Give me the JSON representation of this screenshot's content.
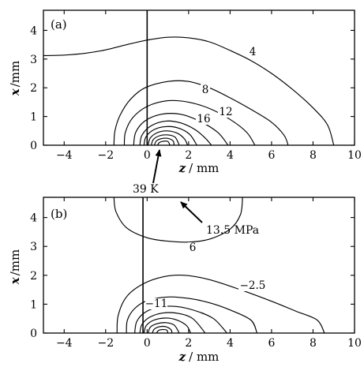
{
  "chart_data": [
    {
      "type": "contour",
      "panel_label": "(a)",
      "xlabel_var": "z",
      "xlabel_unit": "/ mm",
      "ylabel_var": "x",
      "ylabel_unit": "/mm",
      "xlim": [
        -5,
        10
      ],
      "ylim": [
        0,
        4.7
      ],
      "xticks": [
        -4,
        -2,
        0,
        2,
        4,
        6,
        8,
        10
      ],
      "yticks": [
        0,
        1,
        2,
        3,
        4
      ],
      "vertical_line_z": 0,
      "contours": [
        {
          "level": "4",
          "points": [
            [
              -5,
              3.12
            ],
            [
              -4,
              3.14
            ],
            [
              -3,
              3.2
            ],
            [
              -2,
              3.32
            ],
            [
              -1,
              3.5
            ],
            [
              0,
              3.66
            ],
            [
              1,
              3.76
            ],
            [
              2,
              3.74
            ],
            [
              3,
              3.6
            ],
            [
              4,
              3.3
            ],
            [
              5,
              2.95
            ],
            [
              6,
              2.5
            ],
            [
              7,
              1.95
            ],
            [
              8,
              1.3
            ],
            [
              8.7,
              0.7
            ],
            [
              9,
              0
            ]
          ]
        },
        {
          "level": "8",
          "points": [
            [
              -1.6,
              0
            ],
            [
              -1.55,
              0.5
            ],
            [
              -1.3,
              1.05
            ],
            [
              -0.8,
              1.6
            ],
            [
              -0.1,
              2.0
            ],
            [
              1,
              2.22
            ],
            [
              2,
              2.22
            ],
            [
              3,
              2.0
            ],
            [
              4,
              1.65
            ],
            [
              5,
              1.25
            ],
            [
              6,
              0.8
            ],
            [
              6.6,
              0.35
            ],
            [
              6.8,
              0
            ]
          ]
        },
        {
          "level": "12",
          "points": [
            [
              -1.1,
              0
            ],
            [
              -1.05,
              0.45
            ],
            [
              -0.7,
              0.95
            ],
            [
              0,
              1.35
            ],
            [
              1,
              1.55
            ],
            [
              2,
              1.5
            ],
            [
              3,
              1.28
            ],
            [
              4,
              0.9
            ],
            [
              4.8,
              0.45
            ],
            [
              5.2,
              0
            ]
          ]
        },
        {
          "level": "16",
          "points": [
            [
              -0.65,
              0
            ],
            [
              -0.55,
              0.45
            ],
            [
              -0.1,
              0.85
            ],
            [
              0.7,
              1.08
            ],
            [
              1.6,
              1.08
            ],
            [
              2.5,
              0.85
            ],
            [
              3.4,
              0.45
            ],
            [
              3.9,
              0
            ]
          ]
        },
        {
          "level": "",
          "points": [
            [
              -0.35,
              0
            ],
            [
              -0.25,
              0.35
            ],
            [
              0.2,
              0.68
            ],
            [
              0.9,
              0.84
            ],
            [
              1.6,
              0.78
            ],
            [
              2.3,
              0.55
            ],
            [
              2.8,
              0.25
            ],
            [
              3.1,
              0
            ]
          ]
        },
        {
          "level": "",
          "points": [
            [
              -0.15,
              0
            ],
            [
              -0.05,
              0.3
            ],
            [
              0.35,
              0.55
            ],
            [
              0.9,
              0.65
            ],
            [
              1.5,
              0.6
            ],
            [
              2.05,
              0.38
            ],
            [
              2.4,
              0
            ]
          ]
        },
        {
          "level": "",
          "points": [
            [
              0.05,
              0
            ],
            [
              0.15,
              0.25
            ],
            [
              0.5,
              0.44
            ],
            [
              0.95,
              0.5
            ],
            [
              1.45,
              0.42
            ],
            [
              1.8,
              0.22
            ],
            [
              1.95,
              0
            ]
          ]
        },
        {
          "level": "",
          "points": [
            [
              0.2,
              0
            ],
            [
              0.3,
              0.2
            ],
            [
              0.6,
              0.33
            ],
            [
              1.0,
              0.36
            ],
            [
              1.35,
              0.28
            ],
            [
              1.55,
              0
            ]
          ]
        },
        {
          "level": "",
          "points": [
            [
              0.35,
              0
            ],
            [
              0.45,
              0.15
            ],
            [
              0.7,
              0.23
            ],
            [
              1.0,
              0.24
            ],
            [
              1.25,
              0.15
            ],
            [
              1.3,
              0
            ]
          ]
        },
        {
          "level": "",
          "points": [
            [
              0.5,
              0
            ],
            [
              0.6,
              0.1
            ],
            [
              0.8,
              0.14
            ],
            [
              1.0,
              0.13
            ],
            [
              1.1,
              0
            ]
          ]
        }
      ],
      "annotation": {
        "text": "39 K",
        "points_to": [
          0.3,
          0
        ]
      }
    },
    {
      "type": "contour",
      "panel_label": "(b)",
      "xlabel_var": "z",
      "xlabel_unit": "/ mm",
      "ylabel_var": "x",
      "ylabel_unit": "/mm",
      "xlim": [
        -5,
        10
      ],
      "ylim": [
        0,
        4.7
      ],
      "xticks": [
        -4,
        -2,
        0,
        2,
        4,
        6,
        8,
        10
      ],
      "yticks": [
        0,
        1,
        2,
        3,
        4
      ],
      "vertical_line_z": -0.2,
      "contours": [
        {
          "level": "6",
          "points": [
            [
              -1.6,
              4.7
            ],
            [
              -1.5,
              4.2
            ],
            [
              -1.0,
              3.65
            ],
            [
              0,
              3.3
            ],
            [
              1,
              3.18
            ],
            [
              2,
              3.15
            ],
            [
              3,
              3.25
            ],
            [
              4,
              3.6
            ],
            [
              4.5,
              4.1
            ],
            [
              4.6,
              4.7
            ]
          ]
        },
        {
          "level": "−2.5",
          "points": [
            [
              -1.45,
              0
            ],
            [
              -1.4,
              0.6
            ],
            [
              -1.0,
              1.25
            ],
            [
              -0.2,
              1.7
            ],
            [
              0.8,
              1.95
            ],
            [
              1.8,
              2.0
            ],
            [
              3,
              1.85
            ],
            [
              4.5,
              1.5
            ],
            [
              6,
              1.1
            ],
            [
              7.2,
              0.75
            ],
            [
              8.2,
              0.45
            ],
            [
              8.55,
              0
            ]
          ]
        },
        {
          "level": "−11",
          "points": [
            [
              -1.0,
              0
            ],
            [
              -0.95,
              0.45
            ],
            [
              -0.6,
              0.85
            ],
            [
              0,
              1.12
            ],
            [
              1,
              1.25
            ],
            [
              2,
              1.2
            ],
            [
              3,
              1.05
            ],
            [
              4,
              0.8
            ],
            [
              5,
              0.45
            ],
            [
              5.3,
              0
            ]
          ]
        },
        {
          "level": "",
          "points": [
            [
              -0.6,
              0
            ],
            [
              -0.5,
              0.4
            ],
            [
              -0.1,
              0.72
            ],
            [
              0.6,
              0.9
            ],
            [
              1.4,
              0.92
            ],
            [
              2.3,
              0.78
            ],
            [
              3.2,
              0.5
            ],
            [
              3.85,
              0
            ]
          ]
        },
        {
          "level": "",
          "points": [
            [
              -0.35,
              0
            ],
            [
              -0.25,
              0.3
            ],
            [
              0.15,
              0.56
            ],
            [
              0.8,
              0.7
            ],
            [
              1.5,
              0.68
            ],
            [
              2.2,
              0.5
            ],
            [
              2.8,
              0
            ]
          ]
        },
        {
          "level": "",
          "points": [
            [
              -0.15,
              0
            ],
            [
              -0.05,
              0.25
            ],
            [
              0.3,
              0.44
            ],
            [
              0.85,
              0.52
            ],
            [
              1.4,
              0.46
            ],
            [
              1.9,
              0.26
            ],
            [
              2.1,
              0
            ]
          ]
        },
        {
          "level": "",
          "points": [
            [
              0.05,
              0
            ],
            [
              0.15,
              0.2
            ],
            [
              0.45,
              0.32
            ],
            [
              0.9,
              0.36
            ],
            [
              1.3,
              0.28
            ],
            [
              1.55,
              0
            ]
          ]
        },
        {
          "level": "",
          "points": [
            [
              0.25,
              0
            ],
            [
              0.35,
              0.14
            ],
            [
              0.6,
              0.22
            ],
            [
              0.9,
              0.22
            ],
            [
              1.15,
              0.12
            ],
            [
              1.2,
              0
            ]
          ]
        },
        {
          "level": "",
          "points": [
            [
              0.45,
              0
            ],
            [
              0.55,
              0.09
            ],
            [
              0.75,
              0.12
            ],
            [
              0.95,
              0.1
            ],
            [
              1.0,
              0
            ]
          ]
        }
      ],
      "annotation": {
        "text": "13.5 MPa",
        "points_to": [
          2.2,
          4.5
        ]
      }
    }
  ]
}
